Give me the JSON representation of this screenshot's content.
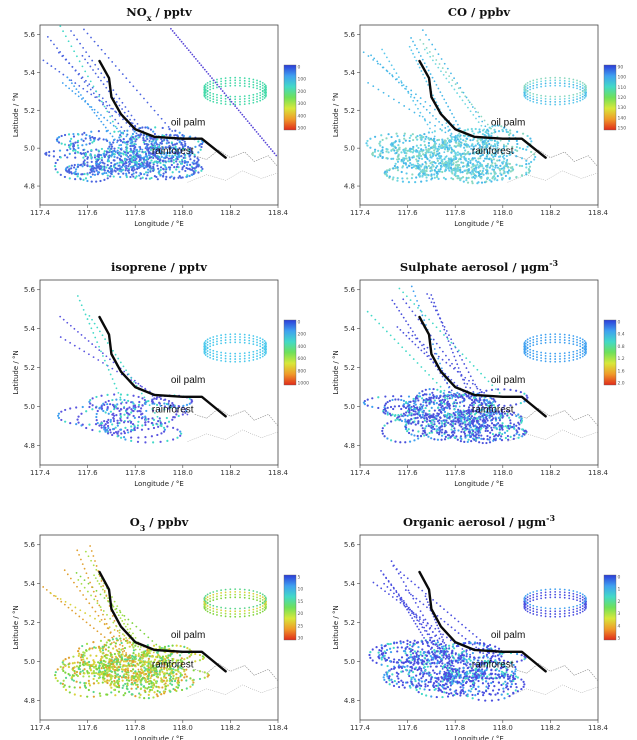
{
  "chart_data": [
    {
      "type": "scatter",
      "title": "NOx / pptv",
      "title_main": "NO",
      "title_sub": "x",
      "title_rest": " / pptv",
      "xlabel": "Longitude / °E",
      "ylabel": "Latitude / °N",
      "xlim": [
        117.4,
        118.4
      ],
      "ylim": [
        4.7,
        5.65
      ],
      "xticks": [
        "117.4",
        "117.6",
        "117.8",
        "118.0",
        "118.2",
        "118.4"
      ],
      "yticks": [
        "4.8",
        "5.0",
        "5.2",
        "5.4",
        "5.6"
      ],
      "colorbar_ticks": [
        "0",
        "100",
        "200",
        "300",
        "400",
        "500"
      ],
      "dominant_color": "#4a63e0",
      "regions": [
        "oil palm",
        "rainforest"
      ]
    },
    {
      "type": "scatter",
      "title": "CO / ppbv",
      "xlabel": "Longitude / °E",
      "ylabel": "Latitude / °N",
      "xlim": [
        117.4,
        118.4
      ],
      "ylim": [
        4.7,
        5.65
      ],
      "xticks": [
        "117.4",
        "117.6",
        "117.8",
        "118.0",
        "118.2",
        "118.4"
      ],
      "yticks": [
        "4.8",
        "5.0",
        "5.2",
        "5.4",
        "5.6"
      ],
      "colorbar_ticks": [
        "90",
        "100",
        "110",
        "120",
        "130",
        "140",
        "150"
      ],
      "dominant_color": "#5cc8ec",
      "regions": [
        "oil palm",
        "rainforest"
      ]
    },
    {
      "type": "scatter",
      "title": "isoprene / pptv",
      "xlabel": "Longitude / °E",
      "ylabel": "Latitude / °N",
      "xlim": [
        117.4,
        118.4
      ],
      "ylim": [
        4.7,
        5.65
      ],
      "xticks": [
        "117.4",
        "117.6",
        "117.8",
        "118.0",
        "118.2",
        "118.4"
      ],
      "yticks": [
        "4.8",
        "5.0",
        "5.2",
        "5.4",
        "5.6"
      ],
      "colorbar_ticks": [
        "0",
        "200",
        "400",
        "600",
        "800",
        "1000"
      ],
      "dominant_color": "#5a55e0",
      "regions": [
        "oil palm",
        "rainforest"
      ]
    },
    {
      "type": "scatter",
      "title": "Sulphate aerosol / μgm-3",
      "title_main": "Sulphate aerosol / μgm",
      "title_sup": "-3",
      "xlabel": "Longitude / °E",
      "ylabel": "Latitude / °N",
      "xlim": [
        117.4,
        118.4
      ],
      "ylim": [
        4.7,
        5.65
      ],
      "xticks": [
        "117.4",
        "117.6",
        "117.8",
        "118.0",
        "118.2",
        "118.4"
      ],
      "yticks": [
        "4.8",
        "5.0",
        "5.2",
        "5.4",
        "5.6"
      ],
      "colorbar_ticks": [
        "0",
        "0.4",
        "0.8",
        "1.2",
        "1.6",
        "2.0"
      ],
      "dominant_color": "#4b52dc",
      "regions": [
        "oil palm",
        "rainforest"
      ]
    },
    {
      "type": "scatter",
      "title": "O3 / ppbv",
      "title_main": "O",
      "title_sub": "3",
      "title_rest": " / ppbv",
      "xlabel": "Longitude / °E",
      "ylabel": "Latitude / °N",
      "xlim": [
        117.4,
        118.4
      ],
      "ylim": [
        4.7,
        5.65
      ],
      "xticks": [
        "117.4",
        "117.6",
        "117.8",
        "118.0",
        "118.2",
        "118.4"
      ],
      "yticks": [
        "4.8",
        "5.0",
        "5.2",
        "5.4",
        "5.6"
      ],
      "colorbar_ticks": [
        "5",
        "10",
        "15",
        "20",
        "25",
        "30"
      ],
      "dominant_color": "#7ed43e",
      "regions": [
        "oil palm",
        "rainforest"
      ]
    },
    {
      "type": "scatter",
      "title": "Organic aerosol / μgm-3",
      "title_main": "Organic aerosol / μgm",
      "title_sup": "-3",
      "xlabel": "Longitude / °E",
      "ylabel": "Latitude / °N",
      "xlim": [
        117.4,
        118.4
      ],
      "ylim": [
        4.7,
        5.65
      ],
      "xticks": [
        "117.4",
        "117.6",
        "117.8",
        "118.0",
        "118.2",
        "118.4"
      ],
      "yticks": [
        "4.8",
        "5.0",
        "5.2",
        "5.4",
        "5.6"
      ],
      "colorbar_ticks": [
        "0",
        "1",
        "2",
        "3",
        "4",
        "5"
      ],
      "dominant_color": "#4a4ee0",
      "regions": [
        "oil palm",
        "rainforest"
      ]
    }
  ]
}
